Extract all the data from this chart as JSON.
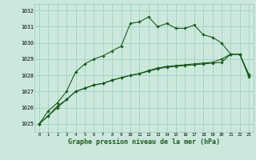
{
  "x": [
    0,
    1,
    2,
    3,
    4,
    5,
    6,
    7,
    8,
    9,
    10,
    11,
    12,
    13,
    14,
    15,
    16,
    17,
    18,
    19,
    20,
    21,
    22,
    23
  ],
  "line1": [
    1025.0,
    1025.8,
    1026.3,
    1027.0,
    1028.2,
    1028.7,
    1029.0,
    1029.2,
    1029.5,
    1029.8,
    1031.2,
    1031.3,
    1031.6,
    1031.0,
    1031.2,
    1030.9,
    1030.9,
    1031.1,
    1030.5,
    1030.35,
    1030.0,
    1029.3,
    1029.3,
    1028.0
  ],
  "line2": [
    1025.0,
    1025.5,
    1026.0,
    1026.5,
    1027.0,
    1027.2,
    1027.4,
    1027.5,
    1027.7,
    1027.85,
    1028.0,
    1028.1,
    1028.25,
    1028.4,
    1028.5,
    1028.55,
    1028.6,
    1028.65,
    1028.7,
    1028.75,
    1028.8,
    1029.3,
    1029.3,
    1028.05
  ],
  "line3": [
    1025.0,
    1025.5,
    1026.1,
    1026.5,
    1027.0,
    1027.2,
    1027.4,
    1027.5,
    1027.7,
    1027.85,
    1028.0,
    1028.1,
    1028.3,
    1028.45,
    1028.55,
    1028.6,
    1028.65,
    1028.7,
    1028.75,
    1028.8,
    1029.0,
    1029.3,
    1029.3,
    1027.9
  ],
  "bg_color": "#cce8dd",
  "grid_color": "#99ccbb",
  "line_color": "#1a5c1a",
  "xlabel": "Graphe pression niveau de la mer (hPa)",
  "ylim": [
    1024.5,
    1032.4
  ],
  "yticks": [
    1025,
    1026,
    1027,
    1028,
    1029,
    1030,
    1031,
    1032
  ],
  "xticks": [
    0,
    1,
    2,
    3,
    4,
    5,
    6,
    7,
    8,
    9,
    10,
    11,
    12,
    13,
    14,
    15,
    16,
    17,
    18,
    19,
    20,
    21,
    22,
    23
  ],
  "figsize": [
    3.2,
    2.0
  ],
  "dpi": 100
}
